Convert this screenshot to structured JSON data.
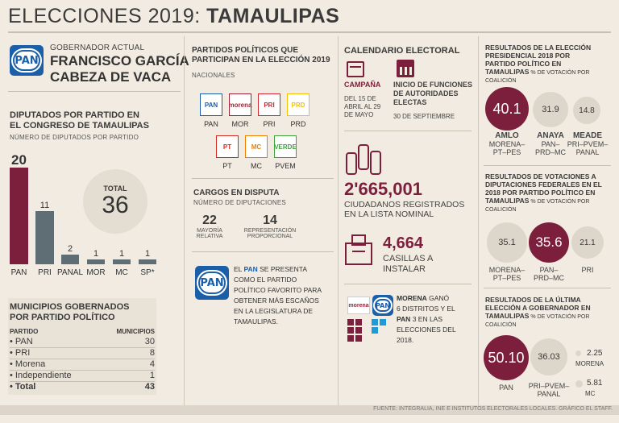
{
  "title": {
    "prefix": "ELECCIONES 2019: ",
    "state": "TAMAULIPAS"
  },
  "governor": {
    "label": "GOBERNADOR ACTUAL",
    "name1": "FRANCISCO GARCÍA",
    "name2": "CABEZA DE VACA",
    "logo": "PAN"
  },
  "deputies": {
    "title1": "DIPUTADOS POR PARTIDO EN",
    "title2": "EL CONGRESO DE TAMAULIPAS",
    "subtitle": "NÚMERO DE DIPUTADOS POR PARTIDO",
    "total_label": "TOTAL",
    "total_value": "36"
  },
  "chart_data": {
    "type": "bar",
    "title": "DIPUTADOS POR PARTIDO EN EL CONGRESO DE TAMAULIPAS",
    "categories": [
      "PAN",
      "PRI",
      "PANAL",
      "MOR",
      "MC",
      "SP*"
    ],
    "values": [
      20,
      11,
      2,
      1,
      1,
      1
    ],
    "value_labels": [
      "20",
      "11",
      "2",
      "1",
      "1",
      "1"
    ],
    "colors": [
      "#7b1f3c",
      "#5f6d75",
      "#5f6d75",
      "#5f6d75",
      "#5f6d75",
      "#5f6d75"
    ],
    "ylim": [
      0,
      20
    ]
  },
  "municipios": {
    "title1": "MUNICIPIOS GOBERNADOS",
    "title2": "POR PARTIDO POLÍTICO",
    "col_party": "PARTIDO",
    "col_count": "MUNICIPIOS",
    "rows": [
      {
        "party": "• PAN",
        "count": "30"
      },
      {
        "party": "• PRI",
        "count": "8"
      },
      {
        "party": "• Morena",
        "count": "4"
      },
      {
        "party": "• Independiente",
        "count": "1"
      }
    ],
    "total": {
      "party": "• Total",
      "count": "43"
    }
  },
  "parties": {
    "title1": "PARTIDOS POLÍTICOS QUE",
    "title2": "PARTICIPAN EN LA ELECCIÓN 2019",
    "sub": "NACIONALES",
    "list": [
      {
        "logo": "PAN",
        "name": "PAN",
        "color": "#1b5fa8"
      },
      {
        "logo": "morena",
        "name": "MOR",
        "color": "#9b2335"
      },
      {
        "logo": "PRI",
        "name": "PRI",
        "color": "#d22630"
      },
      {
        "logo": "PRD",
        "name": "PRD",
        "color": "#f5c400"
      },
      {
        "logo": "PT",
        "name": "PT",
        "color": "#d52b1e"
      },
      {
        "logo": "MC",
        "name": "MC",
        "color": "#f07f00"
      },
      {
        "logo": "VERDE",
        "name": "PVEM",
        "color": "#3ea33a"
      }
    ]
  },
  "cargos": {
    "title": "CARGOS EN DISPUTA",
    "sub": "NÚMERO DE DIPUTACIONES",
    "mr_value": "22",
    "mr_label1": "MAYORÍA",
    "mr_label2": "RELATIVA",
    "rp_value": "14",
    "rp_label1": "REPRESENTACIÓN",
    "rp_label2": "PROPORCIONAL"
  },
  "pan_note": {
    "l1a": "EL ",
    "l1b": "PAN",
    "l1c": " SE PRESENTA",
    "l2": "COMO EL PARTIDO",
    "l3": "POLÍTICO FAVORITO PARA",
    "l4": "OBTENER MÁS ESCAÑOS",
    "l5": "EN LA LEGISLATURA DE",
    "l6": "TAMAULIPAS."
  },
  "calendar": {
    "title": "CALENDARIO ELECTORAL",
    "campaign_label": "CAMPAÑA",
    "campaign_dates1": "DEL 15 DE",
    "campaign_dates2": "ABRIL AL 29",
    "campaign_dates3": "DE MAYO",
    "functions_label1": "INICIO DE FUNCIONES",
    "functions_label2": "DE AUTORIDADES",
    "functions_label3": "ELECTAS",
    "functions_date": "30 DE SEPTIEMBRE",
    "citizens_value": "2'665,001",
    "citizens_label1": "CIUDADANOS REGISTRADOS",
    "citizens_label2": "EN LA LISTA NOMINAL",
    "casillas_value": "4,664",
    "casillas_label1": "CASILLAS A",
    "casillas_label2": "INSTALAR"
  },
  "morena_note": {
    "l1a": "MORENA",
    "l1b": " GANÓ",
    "l2": "6 DISTRITOS Y EL",
    "l3a": "PAN",
    "l3b": " 3 EN LAS",
    "l4": "ELECCIONES DEL",
    "l5": "2018."
  },
  "results_pres": {
    "title1": "RESULTADOS DE LA ELECCIÓN",
    "title2": "PRESIDENCIAL 2018 POR",
    "title3": "PARTIDO POLÍTICO EN",
    "title4": "TAMAULIPAS",
    "unit": " % DE VOTACIÓN POR",
    "unit2": "COALICIÓN",
    "items": [
      {
        "value": "40.1",
        "name": "AMLO",
        "coal1": "MORENA–",
        "coal2": "PT–PES"
      },
      {
        "value": "31.9",
        "name": "ANAYA",
        "coal1": "PAN–",
        "coal2": "PRD–MC"
      },
      {
        "value": "14.8",
        "name": "MEADE",
        "coal1": "PRI–PVEM–",
        "coal2": "PANAL"
      }
    ]
  },
  "results_fed": {
    "title1": "RESULTADOS DE VOTACIONES A",
    "title2": "DIPUTACIONES FEDERALES EN EL",
    "title3": "2018 POR PARTIDO POLÍTICO EN",
    "title4": "TAMAULIPAS",
    "unit": " % DE VOTACIÓN POR",
    "unit2": "COALICIÓN",
    "items": [
      {
        "value": "35.1",
        "coal1": "MORENA–",
        "coal2": "PT–PES"
      },
      {
        "value": "35.6",
        "coal1": "PAN–",
        "coal2": "PRD–MC"
      },
      {
        "value": "21.1",
        "coal1": "PRI",
        "coal2": ""
      }
    ]
  },
  "results_gov": {
    "title1": "RESULTADOS DE LA ÚLTIMA",
    "title2": "ELECCIÓN A GOBERNADOR EN",
    "title3": "TAMAULIPAS",
    "unit": " % DE VOTACIÓN POR",
    "unit2": "COALICIÓN",
    "items": [
      {
        "value": "50.10",
        "coal1": "PAN",
        "coal2": ""
      },
      {
        "value": "36.03",
        "coal1": "PRI–PVEM–",
        "coal2": "PANAL"
      },
      {
        "value": "2.25",
        "coal1": "MORENA",
        "coal2": ""
      },
      {
        "value": "5.81",
        "coal1": "MC",
        "coal2": ""
      }
    ]
  },
  "footer": "FUENTE: INTEGRALIA, INE E INSTITUTOS ELECTORALES LOCALES. GRÁFICO EL STAFF.",
  "colors": {
    "maroon": "#7b1f3c",
    "grey": "#5f6d75",
    "light": "#ddd6cb"
  }
}
